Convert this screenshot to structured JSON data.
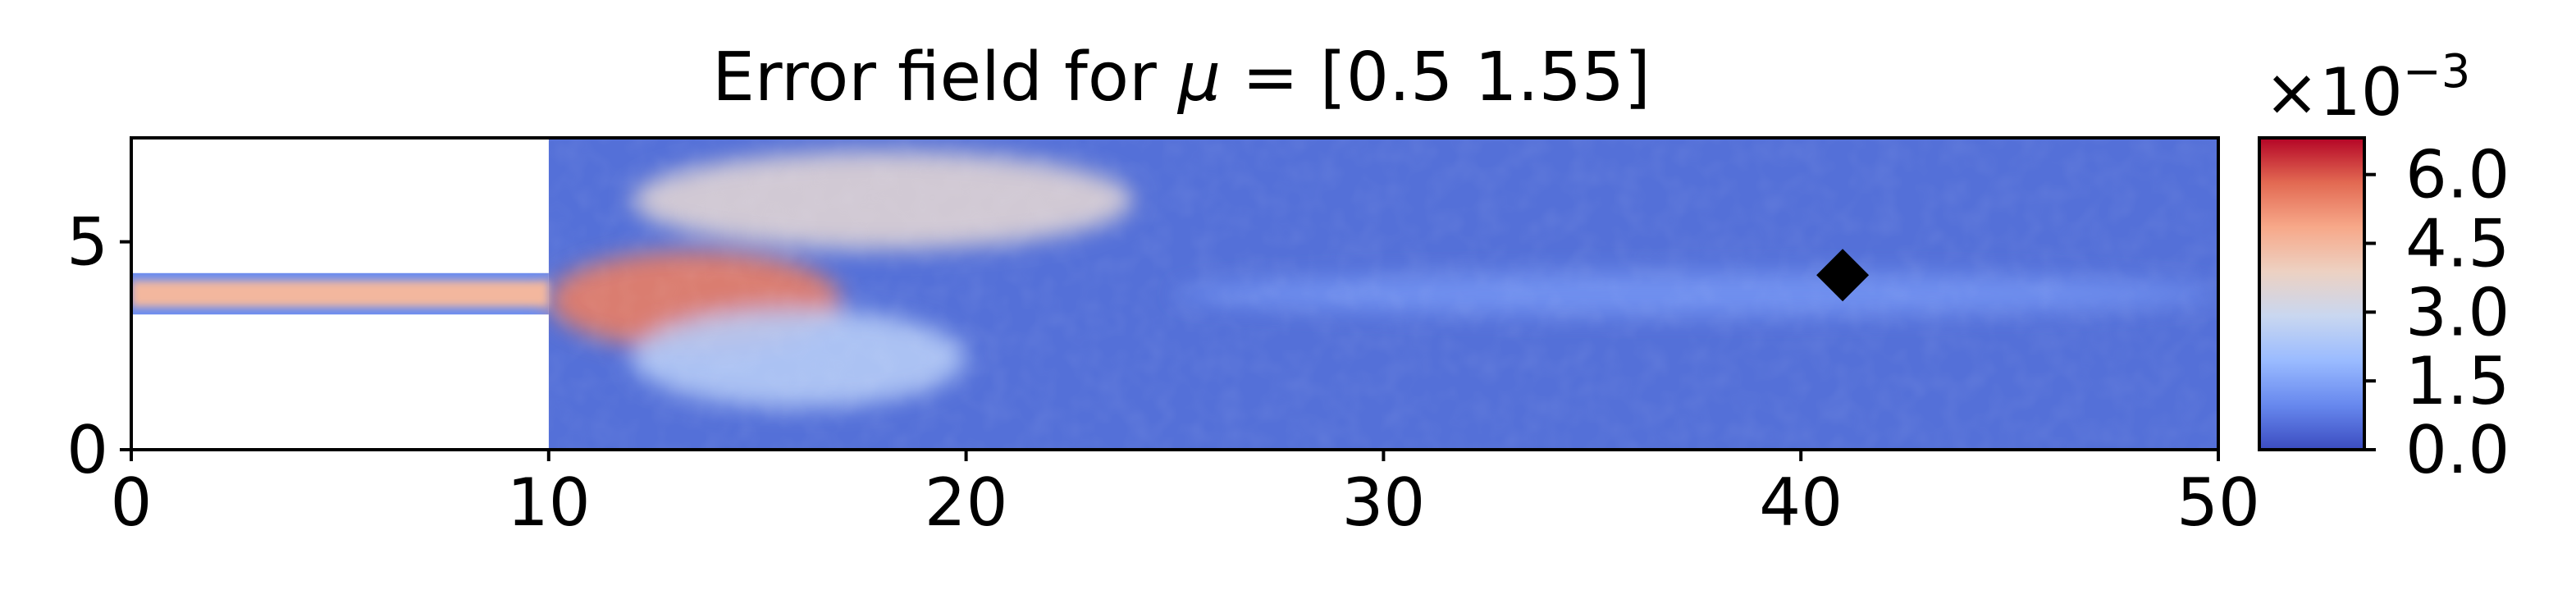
{
  "chart_data": [
    {
      "type": "heatmap",
      "title": "Error field for μ = [0.5  1.55]",
      "title_parts": {
        "prefix": "Error field for ",
        "symbol": "μ",
        "suffix": " = [0.5  1.55]"
      },
      "xlim": [
        0,
        50
      ],
      "ylim": [
        0,
        7.5
      ],
      "x_ticks": [
        0,
        10,
        20,
        30,
        40,
        50
      ],
      "x_tick_labels": [
        "0",
        "10",
        "20",
        "30",
        "40",
        "50"
      ],
      "y_ticks": [
        0,
        5
      ],
      "y_tick_labels": [
        "0",
        "5"
      ],
      "domain": {
        "inlet_channel": {
          "x": [
            0,
            10
          ],
          "y": [
            3.25,
            4.25
          ]
        },
        "main_chamber": {
          "x": [
            10,
            50
          ],
          "y": [
            0,
            7.5
          ]
        }
      },
      "marker": {
        "shape": "diamond",
        "x": 41,
        "y": 4.2,
        "color": "#000000"
      },
      "colormap": "coolwarm",
      "colorbar": {
        "range": [
          0.0,
          0.0068
        ],
        "scale_label": {
          "base": "×10",
          "exponent": "−3"
        },
        "ticks": [
          0.0,
          0.0015,
          0.003,
          0.0045,
          0.006
        ],
        "tick_labels": [
          "0.0",
          "1.5",
          "3.0",
          "4.5",
          "6.0"
        ],
        "colors": [
          "#3b4cc0",
          "#6788ee",
          "#9abbff",
          "#c9d7f0",
          "#edd1c2",
          "#f7a889",
          "#e26952",
          "#b40426"
        ]
      },
      "error_features": [
        {
          "region": "inlet jet centerline",
          "x": [
            0,
            10
          ],
          "y": 3.75,
          "value": 0.0045
        },
        {
          "region": "jet downstream of expansion",
          "x": [
            10,
            17
          ],
          "y": 3.6,
          "value": 0.0055
        },
        {
          "region": "upper shear layer",
          "x": [
            12,
            24
          ],
          "y": 6.0,
          "value": 0.0035
        },
        {
          "region": "lower shear layer",
          "x": [
            12,
            20
          ],
          "y": 2.2,
          "value": 0.0025
        },
        {
          "region": "far field",
          "x": [
            25,
            50
          ],
          "y": 3.75,
          "value": 0.0012
        }
      ]
    }
  ]
}
